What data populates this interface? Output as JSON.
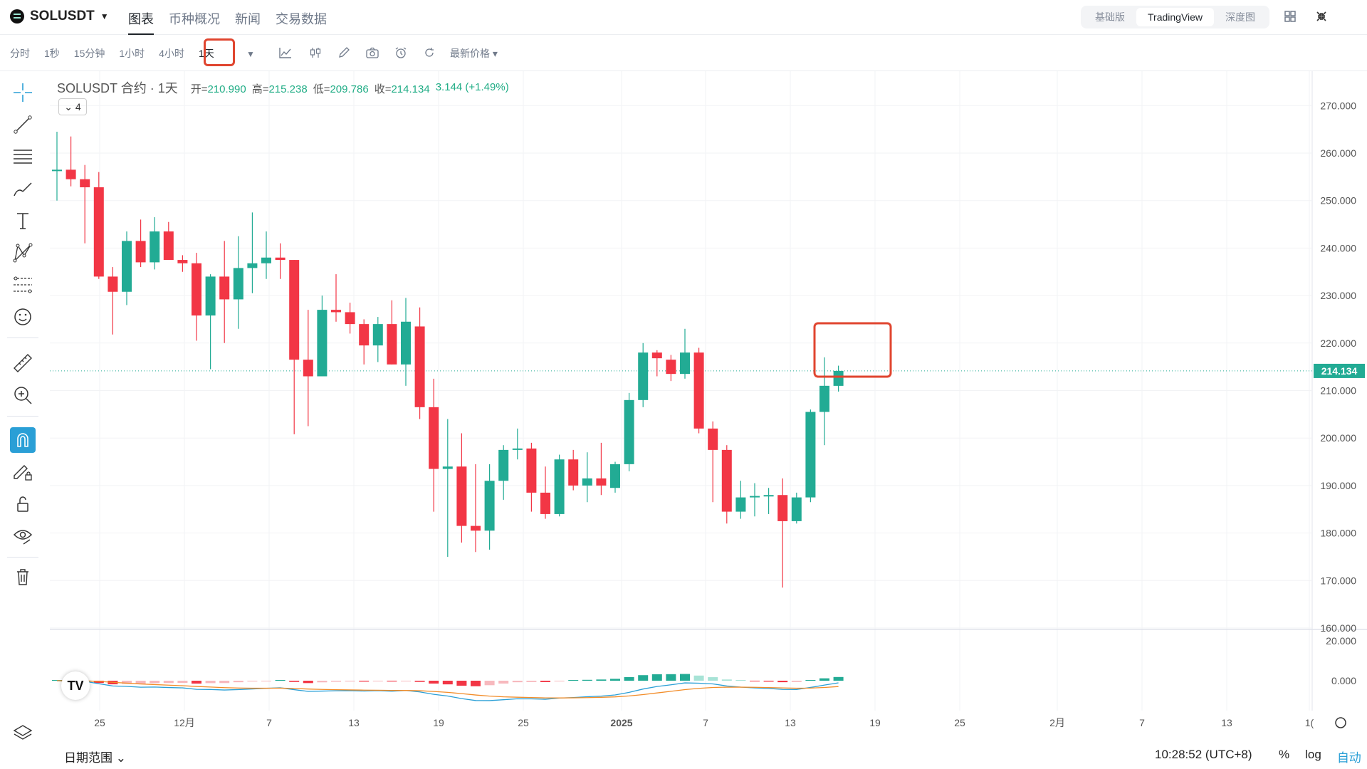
{
  "header": {
    "symbol": "SOLUSDT",
    "tabs": [
      {
        "label": "图表",
        "active": true
      },
      {
        "label": "币种概况"
      },
      {
        "label": "新闻"
      },
      {
        "label": "交易数据"
      }
    ],
    "views": [
      {
        "label": "基础版"
      },
      {
        "label": "TradingView",
        "active": true
      },
      {
        "label": "深度图"
      }
    ]
  },
  "toolbar": {
    "intervals": [
      "分时",
      "1秒",
      "15分钟",
      "1小时",
      "4小时",
      "1天"
    ],
    "selected_interval": "1天",
    "price_type": "最新价格 ▾"
  },
  "legend": {
    "title": "SOLUSDT 合约 · 1天",
    "open_label": "开=",
    "open": "210.990",
    "high_label": "高=",
    "high": "215.238",
    "low_label": "低=",
    "low": "209.786",
    "close_label": "收=",
    "close": "214.134",
    "change": "3.144 (+1.49%)",
    "indicator_count": "4"
  },
  "price_axis": {
    "ticks": [
      "270.000",
      "260.000",
      "250.000",
      "240.000",
      "230.000",
      "220.000",
      "210.000",
      "200.000",
      "190.000",
      "180.000",
      "170.000",
      "160.000"
    ],
    "current_price": "214.134"
  },
  "macd_axis": {
    "ticks": [
      "20.000",
      "0.000"
    ]
  },
  "time_axis": {
    "ticks": [
      "25",
      "12月",
      "7",
      "13",
      "19",
      "25",
      "2025",
      "7",
      "13",
      "19",
      "25",
      "2月",
      "7",
      "13",
      "1("
    ]
  },
  "footer": {
    "date_range": "日期范围",
    "time": "10:28:52 (UTC+8)",
    "percent": "%",
    "log": "log",
    "auto": "自动"
  },
  "colors": {
    "up": "#22ab94",
    "down": "#f23645",
    "accent_red": "#e0452f",
    "auto_blue": "#2a9fd6"
  },
  "chart_data": {
    "type": "candlestick",
    "interval": "1天",
    "candles": [
      {
        "o": 256.5,
        "h": 264.5,
        "l": 250.0,
        "c": 256.5
      },
      {
        "o": 256.5,
        "h": 263.5,
        "l": 253.0,
        "c": 254.5
      },
      {
        "o": 254.5,
        "h": 257.5,
        "l": 241.0,
        "c": 252.8
      },
      {
        "o": 252.8,
        "h": 256.0,
        "l": 233.5,
        "c": 234.0
      },
      {
        "o": 234.0,
        "h": 236.0,
        "l": 221.8,
        "c": 230.8
      },
      {
        "o": 230.8,
        "h": 243.5,
        "l": 228.0,
        "c": 241.5
      },
      {
        "o": 241.5,
        "h": 246.0,
        "l": 236.0,
        "c": 237.0
      },
      {
        "o": 237.0,
        "h": 246.5,
        "l": 235.5,
        "c": 243.5
      },
      {
        "o": 243.5,
        "h": 245.5,
        "l": 238.0,
        "c": 237.5
      },
      {
        "o": 237.5,
        "h": 238.5,
        "l": 235.0,
        "c": 236.8
      },
      {
        "o": 236.8,
        "h": 239.0,
        "l": 220.5,
        "c": 225.8
      },
      {
        "o": 225.8,
        "h": 234.5,
        "l": 214.5,
        "c": 234.0
      },
      {
        "o": 234.0,
        "h": 241.5,
        "l": 220.0,
        "c": 229.2
      },
      {
        "o": 229.2,
        "h": 242.5,
        "l": 223.0,
        "c": 235.8
      },
      {
        "o": 235.8,
        "h": 247.5,
        "l": 230.5,
        "c": 236.8
      },
      {
        "o": 236.8,
        "h": 243.5,
        "l": 233.5,
        "c": 238.0
      },
      {
        "o": 238.0,
        "h": 241.0,
        "l": 233.5,
        "c": 237.5
      },
      {
        "o": 237.5,
        "h": 237.5,
        "l": 200.8,
        "c": 216.5
      },
      {
        "o": 216.5,
        "h": 227.0,
        "l": 202.5,
        "c": 213.0
      },
      {
        "o": 213.0,
        "h": 230.0,
        "l": 213.0,
        "c": 227.0
      },
      {
        "o": 227.0,
        "h": 234.5,
        "l": 224.5,
        "c": 226.5
      },
      {
        "o": 226.5,
        "h": 228.5,
        "l": 222.0,
        "c": 224.0
      },
      {
        "o": 224.0,
        "h": 225.0,
        "l": 215.5,
        "c": 219.5
      },
      {
        "o": 219.5,
        "h": 225.5,
        "l": 216.0,
        "c": 224.0
      },
      {
        "o": 224.0,
        "h": 229.0,
        "l": 215.5,
        "c": 215.5
      },
      {
        "o": 215.5,
        "h": 229.5,
        "l": 211.0,
        "c": 224.5
      },
      {
        "o": 223.5,
        "h": 227.5,
        "l": 204.0,
        "c": 206.5
      },
      {
        "o": 206.5,
        "h": 212.5,
        "l": 184.5,
        "c": 193.5
      },
      {
        "o": 193.5,
        "h": 204.0,
        "l": 175.0,
        "c": 194.0
      },
      {
        "o": 194.0,
        "h": 201.0,
        "l": 178.0,
        "c": 181.5
      },
      {
        "o": 181.5,
        "h": 194.5,
        "l": 176.0,
        "c": 180.5
      },
      {
        "o": 180.5,
        "h": 194.5,
        "l": 176.5,
        "c": 191.0
      },
      {
        "o": 191.0,
        "h": 198.5,
        "l": 187.0,
        "c": 197.5
      },
      {
        "o": 197.5,
        "h": 202.0,
        "l": 195.5,
        "c": 197.8
      },
      {
        "o": 197.8,
        "h": 199.0,
        "l": 184.5,
        "c": 188.5
      },
      {
        "o": 188.5,
        "h": 194.0,
        "l": 183.0,
        "c": 184.0
      },
      {
        "o": 184.0,
        "h": 196.5,
        "l": 183.5,
        "c": 195.5
      },
      {
        "o": 195.5,
        "h": 197.5,
        "l": 189.0,
        "c": 190.0
      },
      {
        "o": 190.0,
        "h": 197.0,
        "l": 186.5,
        "c": 191.5
      },
      {
        "o": 191.5,
        "h": 199.0,
        "l": 188.0,
        "c": 190.0
      },
      {
        "o": 189.5,
        "h": 195.0,
        "l": 188.5,
        "c": 194.5
      },
      {
        "o": 194.5,
        "h": 209.5,
        "l": 193.0,
        "c": 208.0
      },
      {
        "o": 208.0,
        "h": 220.0,
        "l": 206.5,
        "c": 218.0
      },
      {
        "o": 218.0,
        "h": 218.5,
        "l": 213.0,
        "c": 216.8
      },
      {
        "o": 216.5,
        "h": 217.5,
        "l": 212.0,
        "c": 213.5
      },
      {
        "o": 213.5,
        "h": 223.0,
        "l": 212.5,
        "c": 218.0
      },
      {
        "o": 218.0,
        "h": 219.0,
        "l": 201.0,
        "c": 202.0
      },
      {
        "o": 202.0,
        "h": 203.5,
        "l": 186.5,
        "c": 197.5
      },
      {
        "o": 197.5,
        "h": 198.5,
        "l": 182.0,
        "c": 184.5
      },
      {
        "o": 184.5,
        "h": 191.0,
        "l": 183.0,
        "c": 187.5
      },
      {
        "o": 187.5,
        "h": 190.5,
        "l": 183.5,
        "c": 187.8
      },
      {
        "o": 187.8,
        "h": 189.5,
        "l": 184.0,
        "c": 188.0
      },
      {
        "o": 188.0,
        "h": 191.5,
        "l": 168.5,
        "c": 182.5
      },
      {
        "o": 182.5,
        "h": 188.5,
        "l": 182.0,
        "c": 187.5
      },
      {
        "o": 187.5,
        "h": 206.0,
        "l": 186.5,
        "c": 205.5
      },
      {
        "o": 205.5,
        "h": 217.0,
        "l": 198.5,
        "c": 211.0
      },
      {
        "o": 210.99,
        "h": 215.238,
        "l": 209.786,
        "c": 214.134
      }
    ]
  }
}
